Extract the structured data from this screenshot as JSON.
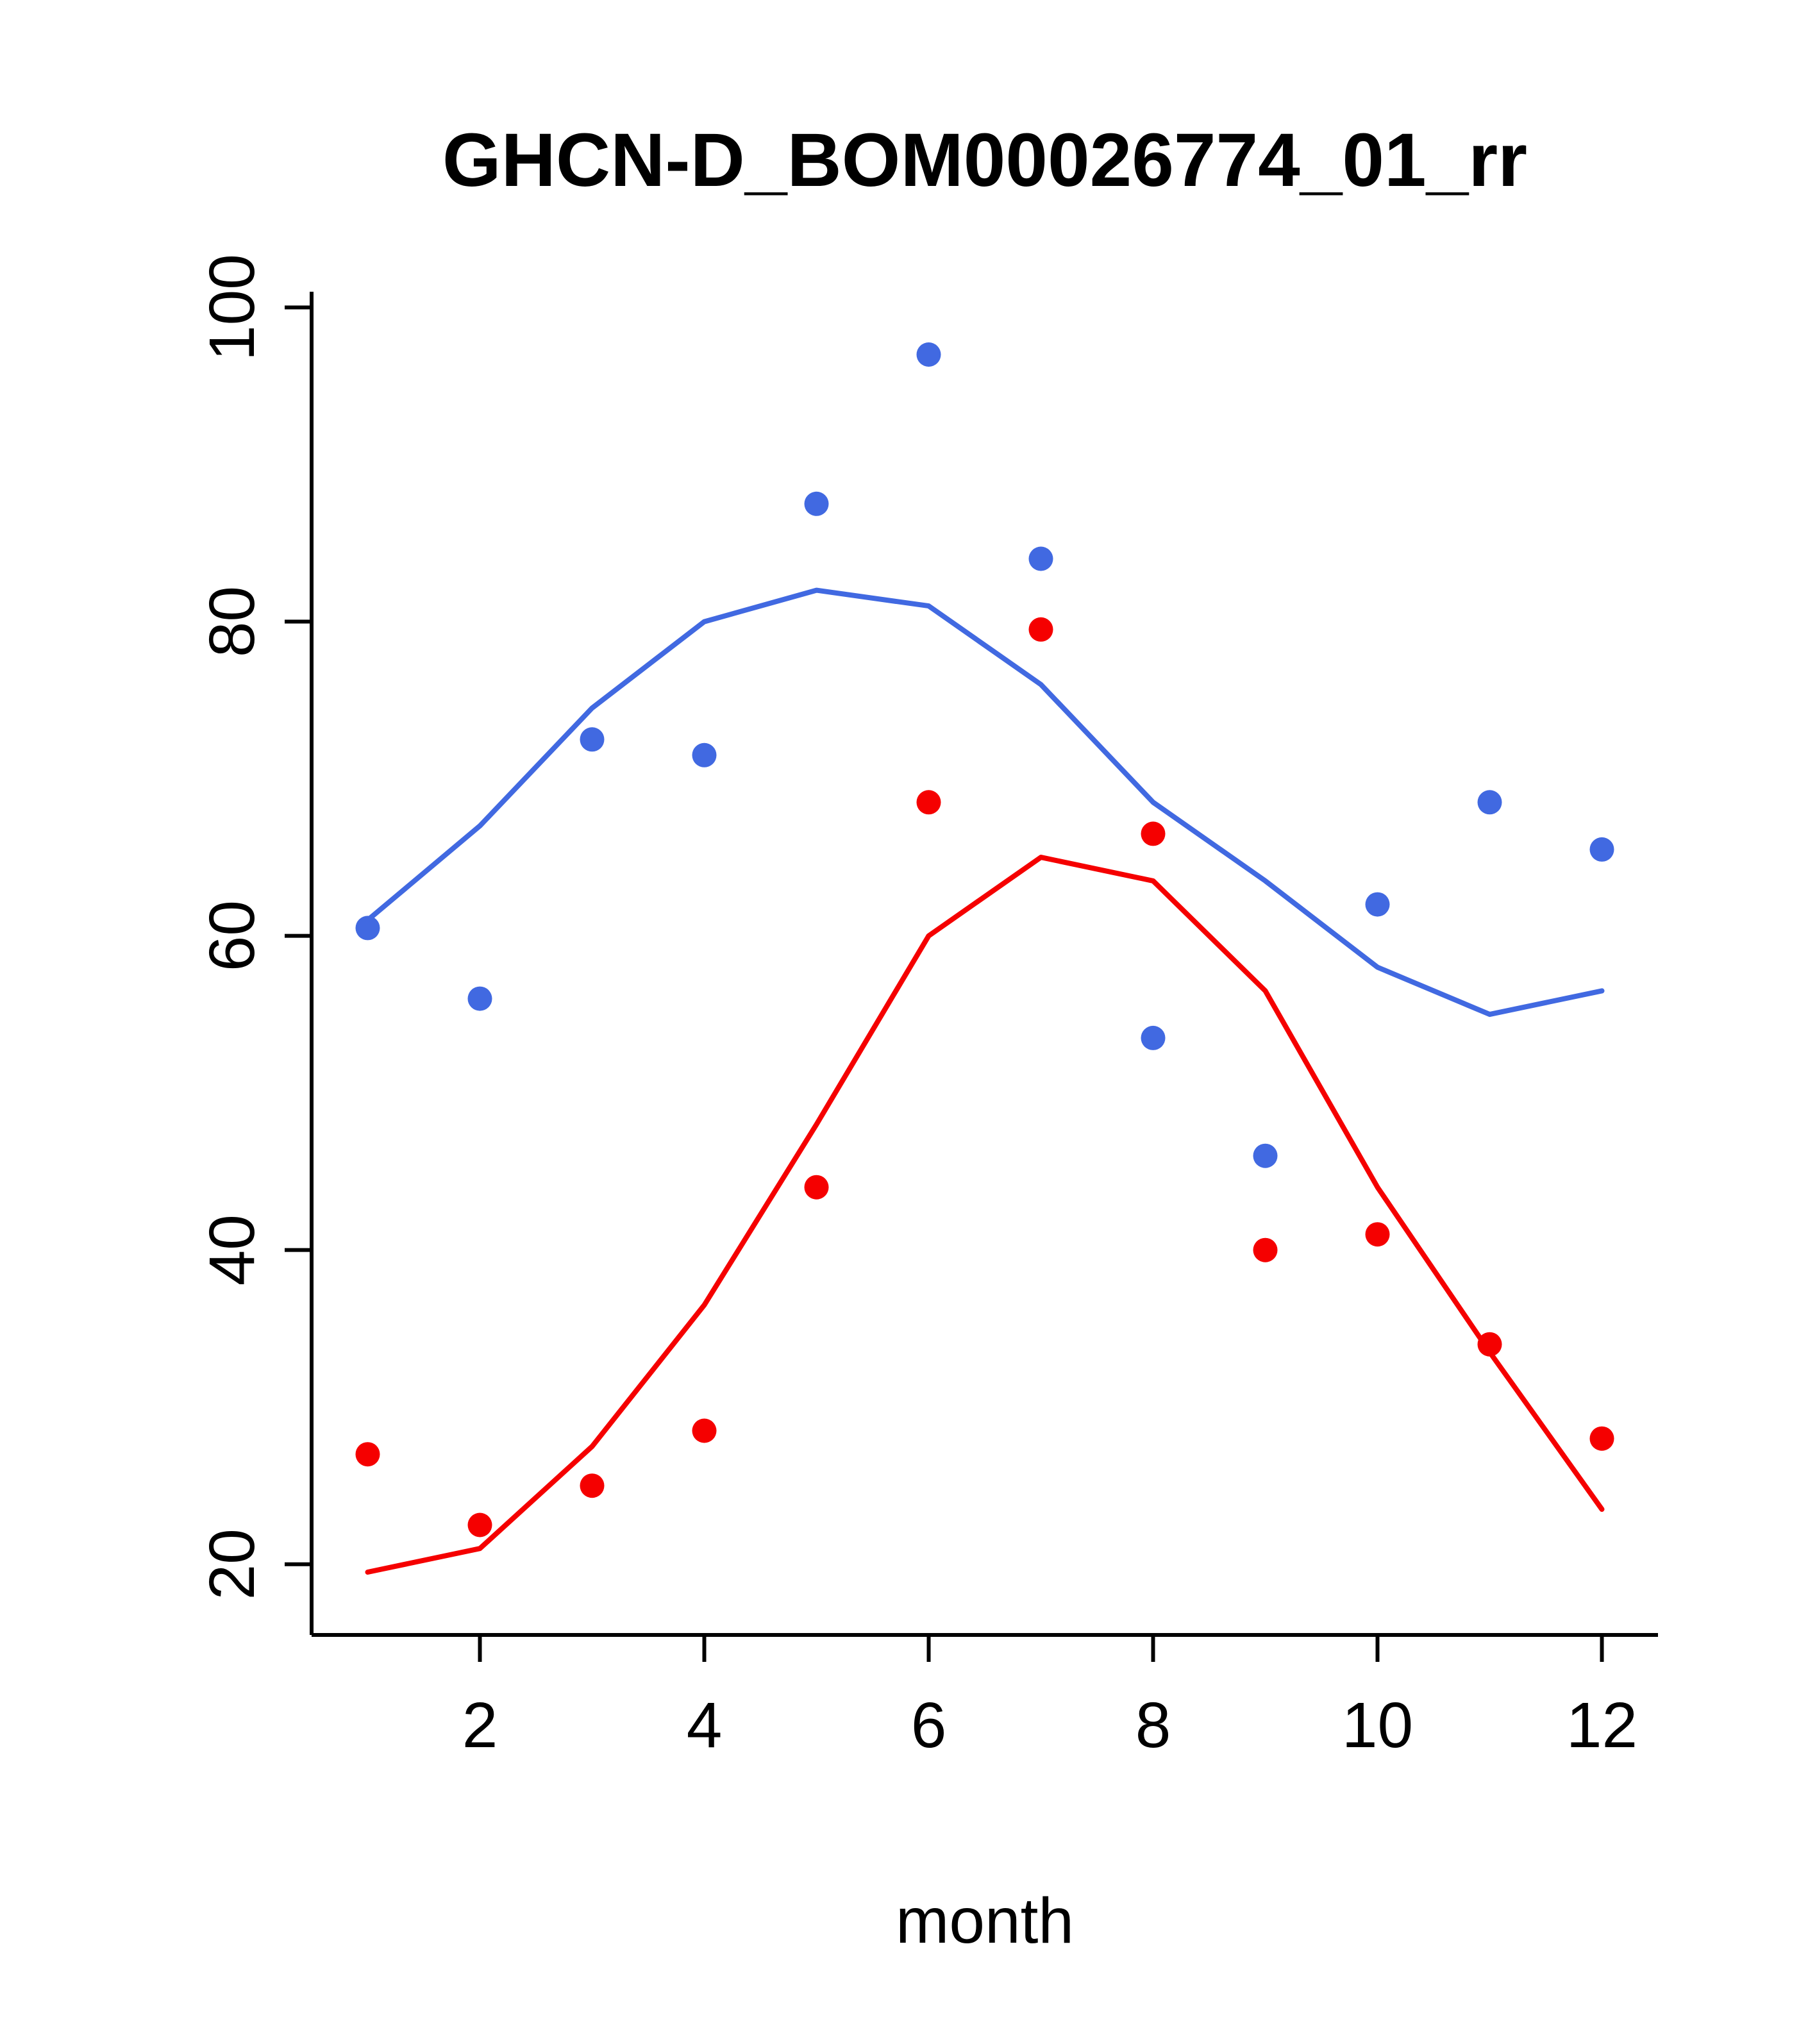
{
  "chart_data": {
    "type": "scatter",
    "title": "GHCN-D_BOM00026774_01_rr",
    "xlabel": "month",
    "ylabel": "",
    "x": [
      1,
      2,
      3,
      4,
      5,
      6,
      7,
      8,
      9,
      10,
      11,
      12
    ],
    "x_ticks": [
      2,
      4,
      6,
      8,
      10,
      12
    ],
    "y_ticks": [
      20,
      40,
      60,
      80,
      100
    ],
    "xlim": [
      0.5,
      12.5
    ],
    "ylim": [
      15.5,
      101
    ],
    "grid": false,
    "legend": "none",
    "colors": {
      "blue": "#4169E1",
      "red": "#F50000",
      "axis": "#000000"
    },
    "series": [
      {
        "name": "blue-points",
        "kind": "points",
        "color": "#4169E1",
        "values": [
          60.5,
          56,
          72.5,
          71.5,
          87.5,
          97,
          84,
          53.5,
          46,
          62,
          68.5,
          65.5
        ]
      },
      {
        "name": "blue-line",
        "kind": "line",
        "color": "#4169E1",
        "values": [
          61,
          67,
          74.5,
          80,
          82,
          81,
          76,
          68.5,
          63.5,
          58,
          55,
          56.5
        ]
      },
      {
        "name": "red-points",
        "kind": "points",
        "color": "#F50000",
        "values": [
          27,
          22.5,
          25,
          28.5,
          44,
          68.5,
          79.5,
          66.5,
          40,
          41,
          34,
          28
        ]
      },
      {
        "name": "red-line",
        "kind": "line",
        "color": "#F50000",
        "values": [
          19.5,
          21,
          27.5,
          36.5,
          48,
          60,
          65,
          63.5,
          56.5,
          44,
          33.5,
          23.5
        ]
      }
    ]
  }
}
